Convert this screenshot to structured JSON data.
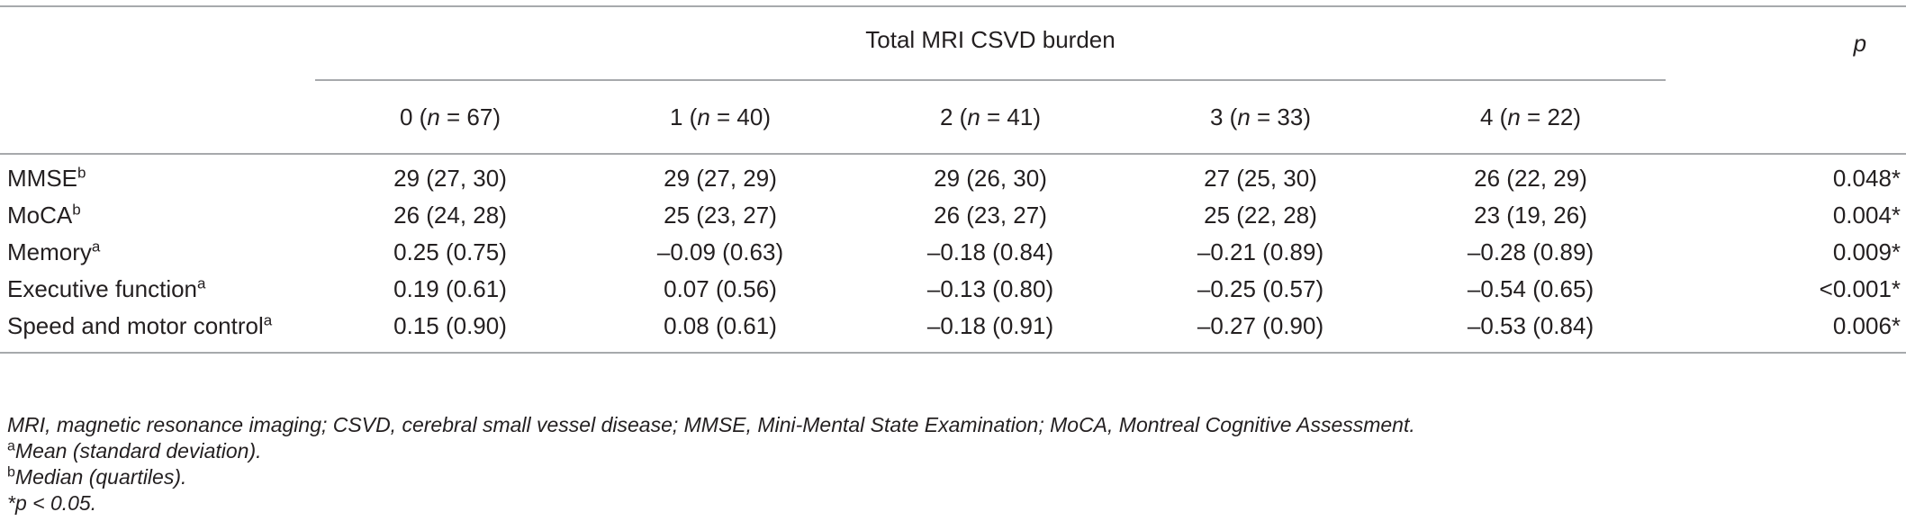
{
  "table": {
    "group_header": "Total MRI CSVD burden",
    "p_header": "p",
    "columns": [
      {
        "lead": "0 (",
        "n": "n",
        "rest": " = 67)"
      },
      {
        "lead": "1 (",
        "n": "n",
        "rest": " = 40)"
      },
      {
        "lead": "2 (",
        "n": "n",
        "rest": " = 41)"
      },
      {
        "lead": "3 (",
        "n": "n",
        "rest": " = 33)"
      },
      {
        "lead": "4 (",
        "n": "n",
        "rest": " = 22)"
      }
    ],
    "rows": [
      {
        "label": "MMSE",
        "sup": "b",
        "values": [
          "29 (27, 30)",
          "29 (27, 29)",
          "29 (26, 30)",
          "27 (25, 30)",
          "26 (22, 29)"
        ],
        "p": "0.048*"
      },
      {
        "label": "MoCA",
        "sup": "b",
        "values": [
          "26 (24, 28)",
          "25 (23, 27)",
          "26 (23, 27)",
          "25 (22, 28)",
          "23 (19, 26)"
        ],
        "p": "0.004*"
      },
      {
        "label": "Memory",
        "sup": "a",
        "values": [
          "0.25 (0.75)",
          "–0.09 (0.63)",
          "–0.18 (0.84)",
          "–0.21 (0.89)",
          "–0.28 (0.89)"
        ],
        "p": "0.009*"
      },
      {
        "label": "Executive function",
        "sup": "a",
        "values": [
          "0.19 (0.61)",
          "0.07 (0.56)",
          "–0.13 (0.80)",
          "–0.25 (0.57)",
          "–0.54 (0.65)"
        ],
        "p": "<0.001*"
      },
      {
        "label": "Speed and motor control",
        "sup": "a",
        "values": [
          "0.15 (0.90)",
          "0.08 (0.61)",
          "–0.18 (0.91)",
          "–0.27 (0.90)",
          "–0.53 (0.84)"
        ],
        "p": "0.006*"
      }
    ]
  },
  "notes": {
    "abbreviations": "MRI, magnetic resonance imaging; CSVD, cerebral small vessel disease; MMSE, Mini-Mental State Examination; MoCA, Montreal Cognitive Assessment.",
    "a_marker": "a",
    "a_text": "Mean (standard deviation).",
    "b_marker": "b",
    "b_text": "Median (quartiles).",
    "significance": "*p < 0.05."
  }
}
